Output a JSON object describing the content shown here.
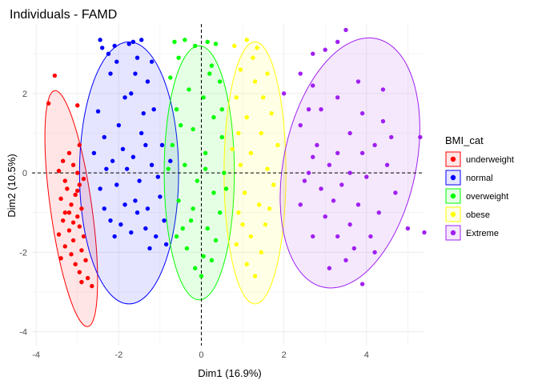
{
  "chart_data": {
    "type": "scatter",
    "title": "Individuals - FAMD",
    "xlabel": "Dim1 (16.9%)",
    "ylabel": "Dim2 (10.5%)",
    "xlim": [
      -4.1,
      5.4
    ],
    "ylim": [
      -4.35,
      3.75
    ],
    "x_ticks": [
      -4,
      -2,
      0,
      2,
      4
    ],
    "y_ticks": [
      -4,
      -2,
      0,
      2
    ],
    "grid": true,
    "reference_lines": {
      "x": 0,
      "y": 0,
      "style": "dashed"
    },
    "legend": {
      "title": "BMI_cat",
      "position": "right",
      "items": [
        "underweight",
        "normal",
        "overweight",
        "obese",
        "Extreme"
      ]
    },
    "series": [
      {
        "name": "underweight",
        "color": "#ff0000",
        "points": [
          [
            -3.55,
            2.45
          ],
          [
            -3.7,
            1.75
          ],
          [
            -3.0,
            1.7
          ],
          [
            -2.95,
            0.7
          ],
          [
            -3.2,
            0.5
          ],
          [
            -3.35,
            0.3
          ],
          [
            -3.1,
            0.2
          ],
          [
            -3.45,
            0.05
          ],
          [
            -3.0,
            0.0
          ],
          [
            -3.3,
            -0.2
          ],
          [
            -2.95,
            -0.3
          ],
          [
            -3.25,
            -0.4
          ],
          [
            -3.05,
            -0.55
          ],
          [
            -3.4,
            -0.65
          ],
          [
            -3.15,
            -0.8
          ],
          [
            -2.9,
            -0.9
          ],
          [
            -3.3,
            -1.0
          ],
          [
            -3.0,
            -1.1
          ],
          [
            -3.35,
            -1.2
          ],
          [
            -2.95,
            -1.35
          ],
          [
            -3.2,
            -1.45
          ],
          [
            -3.45,
            -1.55
          ],
          [
            -2.85,
            -1.6
          ],
          [
            -3.1,
            -1.7
          ],
          [
            -3.3,
            -1.85
          ],
          [
            -2.9,
            -1.95
          ],
          [
            -3.15,
            -2.05
          ],
          [
            -3.4,
            -2.15
          ],
          [
            -2.8,
            -2.2
          ],
          [
            -3.05,
            -2.3
          ],
          [
            -2.95,
            -2.5
          ],
          [
            -2.75,
            -2.65
          ],
          [
            -2.9,
            -2.75
          ],
          [
            -2.65,
            -2.85
          ],
          [
            -3.1,
            -1.25
          ],
          [
            -3.0,
            -0.45
          ],
          [
            -2.85,
            -0.15
          ],
          [
            -3.2,
            -1.0
          ]
        ]
      },
      {
        "name": "normal",
        "color": "#0000ff",
        "points": [
          [
            -2.45,
            3.35
          ],
          [
            -2.4,
            3.15
          ],
          [
            -2.1,
            3.2
          ],
          [
            -1.65,
            3.3
          ],
          [
            -1.45,
            3.35
          ],
          [
            -1.75,
            3.25
          ],
          [
            -2.05,
            2.8
          ],
          [
            -2.2,
            2.5
          ],
          [
            -1.6,
            2.5
          ],
          [
            -1.3,
            2.3
          ],
          [
            -1.15,
            1.6
          ],
          [
            -1.85,
            1.9
          ],
          [
            -2.5,
            1.55
          ],
          [
            -1.45,
            1.0
          ],
          [
            -0.95,
            0.7
          ],
          [
            -0.75,
            0.3
          ],
          [
            -2.6,
            0.5
          ],
          [
            -2.35,
            0.9
          ],
          [
            -1.0,
            -0.6
          ],
          [
            -0.85,
            -1.8
          ],
          [
            -1.1,
            -1.6
          ],
          [
            -1.35,
            -1.4
          ],
          [
            -1.7,
            -1.5
          ],
          [
            -1.95,
            -1.3
          ],
          [
            -2.2,
            -1.2
          ],
          [
            -2.35,
            -0.9
          ],
          [
            -2.05,
            -0.3
          ],
          [
            -1.8,
            0.1
          ],
          [
            -1.5,
            -0.2
          ],
          [
            -1.2,
            0.2
          ],
          [
            -1.3,
            -0.9
          ],
          [
            -1.6,
            -0.7
          ],
          [
            -1.9,
            0.6
          ],
          [
            -2.3,
            0.1
          ],
          [
            -1.4,
            1.5
          ],
          [
            -2.0,
            1.2
          ],
          [
            -1.7,
            2.0
          ],
          [
            -1.2,
            2.8
          ],
          [
            -1.55,
            2.9
          ],
          [
            -2.25,
            3.0
          ],
          [
            -0.9,
            -1.2
          ],
          [
            -1.05,
            -0.1
          ],
          [
            -2.45,
            -0.4
          ],
          [
            -2.1,
            -1.6
          ],
          [
            -1.55,
            -1.0
          ],
          [
            -1.85,
            -0.8
          ],
          [
            -1.25,
            -1.9
          ],
          [
            -1.65,
            0.4
          ],
          [
            -2.15,
            0.3
          ],
          [
            -1.35,
            0.7
          ]
        ]
      },
      {
        "name": "overweight",
        "color": "#00ff00",
        "points": [
          [
            -0.65,
            3.3
          ],
          [
            -0.4,
            3.35
          ],
          [
            -0.15,
            3.2
          ],
          [
            0.15,
            3.3
          ],
          [
            0.35,
            3.25
          ],
          [
            -0.55,
            2.9
          ],
          [
            0.25,
            2.7
          ],
          [
            -0.75,
            2.4
          ],
          [
            0.45,
            2.3
          ],
          [
            -0.3,
            2.1
          ],
          [
            0.05,
            1.9
          ],
          [
            -0.6,
            1.6
          ],
          [
            0.3,
            1.4
          ],
          [
            -0.2,
            1.1
          ],
          [
            0.5,
            0.9
          ],
          [
            -0.7,
            0.7
          ],
          [
            0.1,
            0.5
          ],
          [
            -0.4,
            0.2
          ],
          [
            0.55,
            0.0
          ],
          [
            -0.1,
            -0.2
          ],
          [
            0.3,
            -0.5
          ],
          [
            -0.55,
            -0.7
          ],
          [
            0.45,
            -1.0
          ],
          [
            -0.25,
            -1.2
          ],
          [
            0.15,
            -1.4
          ],
          [
            -0.6,
            -1.6
          ],
          [
            0.35,
            -1.7
          ],
          [
            -0.35,
            -1.9
          ],
          [
            0.05,
            -2.1
          ],
          [
            -0.15,
            -2.4
          ],
          [
            0.0,
            -2.6
          ],
          [
            0.25,
            -2.2
          ],
          [
            -0.45,
            -1.4
          ],
          [
            0.6,
            -0.4
          ],
          [
            -0.8,
            0.1
          ],
          [
            0.5,
            1.6
          ],
          [
            -0.5,
            1.2
          ],
          [
            0.2,
            2.5
          ],
          [
            -0.2,
            -0.9
          ],
          [
            0.1,
            0.1
          ]
        ]
      },
      {
        "name": "obese",
        "color": "#ffff00",
        "points": [
          [
            0.8,
            3.2
          ],
          [
            1.1,
            3.35
          ],
          [
            1.35,
            3.15
          ],
          [
            1.6,
            2.5
          ],
          [
            0.95,
            2.6
          ],
          [
            1.3,
            2.3
          ],
          [
            0.85,
            1.9
          ],
          [
            1.5,
            1.9
          ],
          [
            1.7,
            1.5
          ],
          [
            1.1,
            1.4
          ],
          [
            0.9,
            1.0
          ],
          [
            1.45,
            1.0
          ],
          [
            1.85,
            0.7
          ],
          [
            1.2,
            0.5
          ],
          [
            0.95,
            0.2
          ],
          [
            1.6,
            0.1
          ],
          [
            1.75,
            -0.3
          ],
          [
            1.05,
            -0.5
          ],
          [
            1.4,
            -0.8
          ],
          [
            0.9,
            -1.0
          ],
          [
            1.55,
            -1.3
          ],
          [
            1.2,
            -1.6
          ],
          [
            0.85,
            -1.8
          ],
          [
            1.45,
            -2.0
          ],
          [
            1.1,
            -2.3
          ],
          [
            1.3,
            -2.6
          ],
          [
            0.75,
            0.6
          ],
          [
            1.25,
            2.9
          ],
          [
            1.65,
            -0.9
          ],
          [
            1.0,
            -1.3
          ]
        ]
      },
      {
        "name": "Extreme",
        "color": "#a020f0",
        "points": [
          [
            3.5,
            3.6
          ],
          [
            3.3,
            3.3
          ],
          [
            2.7,
            3.0
          ],
          [
            3.0,
            3.1
          ],
          [
            2.4,
            2.5
          ],
          [
            3.8,
            2.3
          ],
          [
            2.7,
            2.2
          ],
          [
            4.4,
            2.1
          ],
          [
            2.0,
            2.0
          ],
          [
            3.3,
            1.9
          ],
          [
            2.9,
            1.6
          ],
          [
            3.9,
            1.5
          ],
          [
            2.6,
            1.6
          ],
          [
            4.6,
            0.9
          ],
          [
            5.3,
            0.9
          ],
          [
            2.4,
            1.2
          ],
          [
            3.6,
            1.0
          ],
          [
            4.2,
            0.7
          ],
          [
            2.8,
            0.7
          ],
          [
            3.3,
            0.5
          ],
          [
            3.9,
            0.5
          ],
          [
            2.7,
            0.4
          ],
          [
            4.5,
            0.2
          ],
          [
            3.1,
            0.2
          ],
          [
            3.6,
            0.0
          ],
          [
            2.6,
            0.0
          ],
          [
            4.0,
            -0.1
          ],
          [
            3.4,
            -0.3
          ],
          [
            2.9,
            -0.4
          ],
          [
            4.7,
            -0.5
          ],
          [
            3.2,
            -0.7
          ],
          [
            3.8,
            -0.8
          ],
          [
            2.4,
            -0.8
          ],
          [
            4.3,
            -1.0
          ],
          [
            3.0,
            -1.1
          ],
          [
            3.6,
            -1.3
          ],
          [
            5.0,
            -1.4
          ],
          [
            5.4,
            -1.5
          ],
          [
            3.3,
            -1.6
          ],
          [
            4.1,
            -1.6
          ],
          [
            2.7,
            -1.6
          ],
          [
            4.2,
            -2.0
          ],
          [
            3.5,
            -2.2
          ],
          [
            3.9,
            -2.8
          ],
          [
            3.1,
            -2.4
          ],
          [
            3.7,
            -1.9
          ],
          [
            2.5,
            -0.2
          ],
          [
            4.4,
            1.3
          ]
        ]
      }
    ],
    "ellipses": [
      {
        "group": "underweight",
        "cx": -3.15,
        "cy": -0.9,
        "rx": 0.5,
        "ry": 3.0,
        "angle_deg": -8
      },
      {
        "group": "normal",
        "cx": -1.75,
        "cy": 0.0,
        "rx": 1.2,
        "ry": 3.3,
        "angle_deg": 0
      },
      {
        "group": "overweight",
        "cx": -0.05,
        "cy": 0.0,
        "rx": 0.85,
        "ry": 3.2,
        "angle_deg": 0
      },
      {
        "group": "obese",
        "cx": 1.3,
        "cy": 0.0,
        "rx": 0.75,
        "ry": 3.3,
        "angle_deg": 0
      },
      {
        "group": "Extreme",
        "cx": 3.6,
        "cy": 0.25,
        "rx": 1.6,
        "ry": 3.2,
        "angle_deg": 12
      }
    ]
  }
}
